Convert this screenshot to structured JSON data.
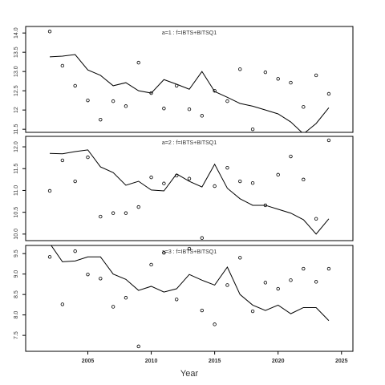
{
  "chart_data": [
    {
      "type": "line",
      "title": "a=1 : f=IBTS+BITSQ1",
      "color": "#000000",
      "x": [
        2002,
        2003,
        2004,
        2005,
        2006,
        2007,
        2008,
        2009,
        2010,
        2011,
        2012,
        2013,
        2014,
        2015,
        2016,
        2017,
        2018,
        2019,
        2020,
        2021,
        2022,
        2023,
        2024
      ],
      "series": [
        {
          "marker": "circle",
          "values": [
            14.04,
            13.15,
            12.63,
            12.25,
            11.75,
            12.23,
            12.1,
            13.23,
            12.44,
            12.04,
            12.63,
            12.02,
            11.85,
            12.5,
            12.23,
            13.06,
            11.5,
            12.98,
            12.81,
            12.71,
            12.08,
            12.9,
            12.42
          ]
        },
        {
          "marker": "none",
          "values": [
            13.38,
            13.4,
            13.44,
            13.04,
            12.9,
            12.63,
            12.71,
            12.5,
            12.44,
            12.79,
            12.67,
            12.54,
            13.0,
            12.48,
            12.33,
            12.17,
            12.1,
            12.0,
            11.9,
            11.69,
            11.38,
            11.65,
            12.06
          ]
        }
      ],
      "xlim": [
        2000.1,
        2025.9
      ],
      "ylim": [
        11.42,
        14.17
      ],
      "yticks": [
        {
          "value": 11.5,
          "label": "11.5"
        },
        12,
        {
          "value": 12.5,
          "label": "12.5"
        },
        {
          "value": 13,
          "label": "13.0"
        },
        {
          "value": 13.5,
          "label": "13.5"
        },
        {
          "value": 14,
          "label": "14.0"
        }
      ]
    },
    {
      "type": "line",
      "title": "a=2 : f=IBTS+BITSQ1",
      "color": "#000000",
      "x": [
        2002,
        2003,
        2004,
        2005,
        2006,
        2007,
        2008,
        2009,
        2010,
        2011,
        2012,
        2013,
        2014,
        2015,
        2016,
        2017,
        2018,
        2019,
        2020,
        2021,
        2022,
        2023,
        2024
      ],
      "series": [
        {
          "marker": "circle",
          "values": [
            10.99,
            11.69,
            11.21,
            11.76,
            10.4,
            10.48,
            10.48,
            10.62,
            11.3,
            11.16,
            11.34,
            11.27,
            9.91,
            11.1,
            11.52,
            11.21,
            11.17,
            10.66,
            11.36,
            11.78,
            11.25,
            10.35,
            12.15
          ]
        },
        {
          "marker": "none",
          "values": [
            11.85,
            11.84,
            11.89,
            11.93,
            11.54,
            11.41,
            11.12,
            11.21,
            11.01,
            10.99,
            11.38,
            11.21,
            11.08,
            11.6,
            11.05,
            10.81,
            10.66,
            10.66,
            10.57,
            10.48,
            10.33,
            10.0,
            10.35
          ]
        }
      ],
      "xlim": [
        2000.1,
        2025.9
      ],
      "ylim": [
        9.85,
        12.24
      ],
      "yticks": [
        {
          "value": 10,
          "label": "10.0"
        },
        {
          "value": 10.5,
          "label": "10.5"
        },
        {
          "value": 11,
          "label": "11.0"
        },
        {
          "value": 11.5,
          "label": "11.5"
        },
        {
          "value": 12,
          "label": "12.0"
        }
      ]
    },
    {
      "type": "line",
      "title": "a=3 : f=IBTS+BITSQ1",
      "color": "#000000",
      "x_label": "Year",
      "x": [
        2002,
        2003,
        2004,
        2005,
        2006,
        2007,
        2008,
        2009,
        2010,
        2011,
        2012,
        2013,
        2014,
        2015,
        2016,
        2017,
        2018,
        2019,
        2020,
        2021,
        2022,
        2023,
        2024
      ],
      "series": [
        {
          "marker": "circle",
          "values": [
            9.42,
            8.26,
            9.56,
            8.99,
            8.89,
            8.2,
            8.42,
            7.23,
            9.23,
            9.52,
            8.38,
            9.62,
            8.11,
            7.77,
            8.73,
            9.4,
            8.09,
            8.79,
            8.64,
            8.85,
            9.13,
            8.81,
            9.13
          ]
        },
        {
          "marker": "none",
          "values": [
            9.75,
            9.3,
            9.32,
            9.42,
            9.42,
            9.0,
            8.87,
            8.6,
            8.7,
            8.56,
            8.64,
            8.99,
            8.85,
            8.73,
            9.17,
            8.5,
            8.24,
            8.11,
            8.24,
            8.03,
            8.18,
            8.18,
            7.86
          ]
        }
      ],
      "xlim": [
        2000.1,
        2025.9
      ],
      "ylim": [
        7.11,
        9.7
      ],
      "xticks": [
        2005,
        2010,
        2015,
        2020,
        2025
      ],
      "yticks": [
        {
          "value": 7.5,
          "label": "7.5"
        },
        {
          "value": 8,
          "label": "8.0"
        },
        {
          "value": 8.5,
          "label": "8.5"
        },
        {
          "value": 9,
          "label": "9.0"
        },
        {
          "value": 9.5,
          "label": "9.5"
        }
      ]
    }
  ]
}
